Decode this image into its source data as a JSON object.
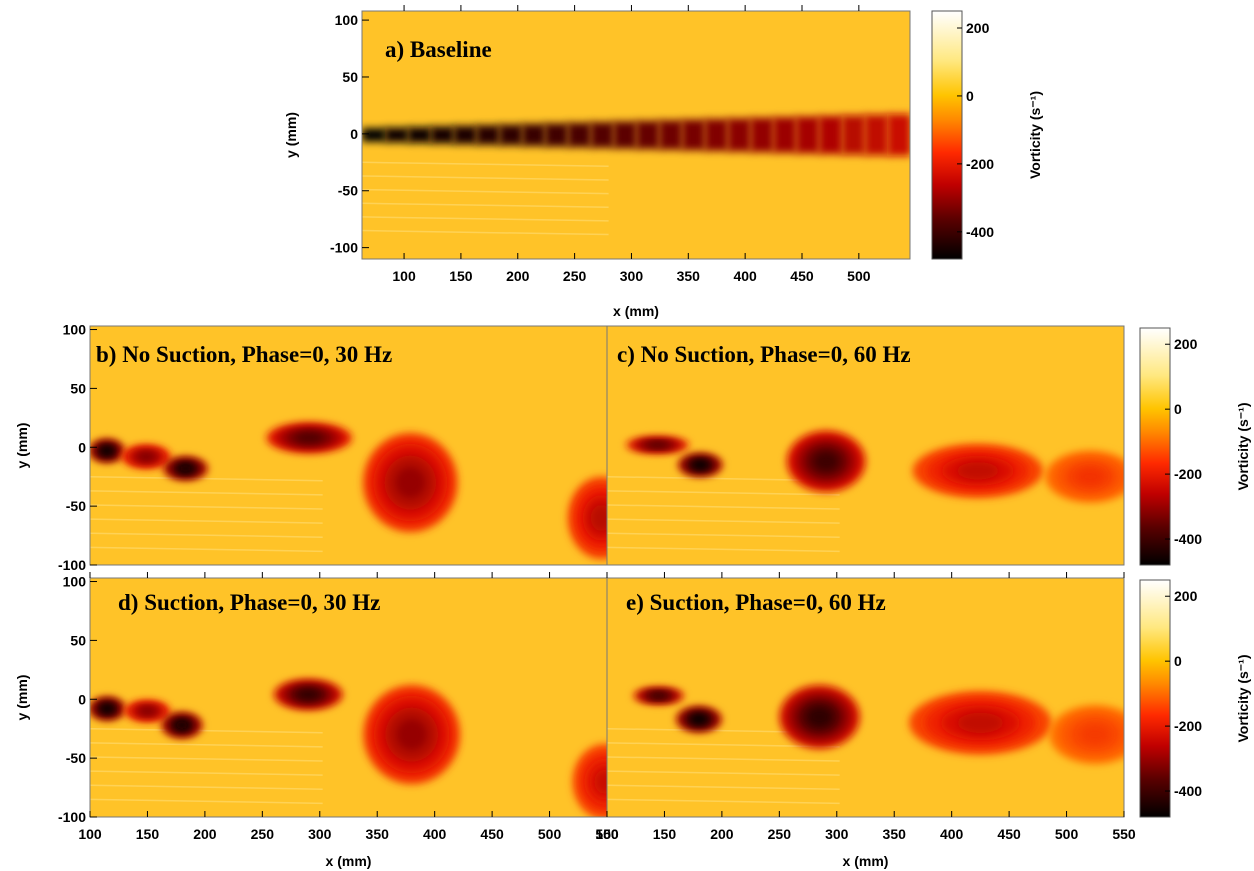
{
  "chart_data": [
    {
      "type": "heatmap",
      "title": "a) Baseline",
      "xlabel": "x (mm)",
      "ylabel": "y (mm)",
      "xlim": [
        63,
        545
      ],
      "ylim": [
        -110,
        108
      ],
      "xticks": [
        100,
        150,
        200,
        250,
        300,
        350,
        400,
        450,
        500
      ],
      "yticks": [
        100,
        50,
        0,
        -50,
        -100
      ],
      "colorbar": {
        "label": "Vorticity (s⁻¹)",
        "range": [
          -480,
          250
        ],
        "ticks": [
          200,
          0,
          -200,
          -400
        ]
      },
      "background_vorticity": 0,
      "features": [
        {
          "kind": "shear-layer",
          "x_start": 63,
          "x_end": 545,
          "y_center": -1,
          "half_width_start": 6,
          "half_width_end": 19,
          "vorticity_start": -480,
          "vorticity_end": -230
        }
      ]
    },
    {
      "type": "heatmap",
      "title": "b) No Suction, Phase=0, 30 Hz",
      "xlabel": "",
      "ylabel": "y (mm)",
      "xlim": [
        90,
        550
      ],
      "ylim": [
        -100,
        103
      ],
      "yticks": [
        100,
        50,
        0,
        -50,
        -100
      ],
      "background_vorticity": 0,
      "features": [
        {
          "kind": "vortex",
          "x": 105,
          "y": -3,
          "rx": 16,
          "ry": 10,
          "vorticity": -480
        },
        {
          "kind": "vortex",
          "x": 140,
          "y": -8,
          "rx": 22,
          "ry": 10,
          "vorticity": -330
        },
        {
          "kind": "vortex",
          "x": 175,
          "y": -18,
          "rx": 20,
          "ry": 10,
          "vorticity": -470
        },
        {
          "kind": "vortex",
          "x": 285,
          "y": 8,
          "rx": 38,
          "ry": 13,
          "vorticity": -380
        },
        {
          "kind": "vortex",
          "x": 375,
          "y": -30,
          "rx": 42,
          "ry": 42,
          "vorticity": -300
        },
        {
          "kind": "vortex",
          "x": 545,
          "y": -60,
          "rx": 30,
          "ry": 35,
          "vorticity": -260
        }
      ]
    },
    {
      "type": "heatmap",
      "title": "c) No Suction, Phase=0, 60 Hz",
      "xlabel": "",
      "ylabel": "",
      "xlim": [
        90,
        550
      ],
      "ylim": [
        -100,
        103
      ],
      "colorbar": {
        "label": "Vorticity (s⁻¹)",
        "range": [
          -480,
          250
        ],
        "ticks": [
          200,
          0,
          -200,
          -400
        ]
      },
      "background_vorticity": 0,
      "features": [
        {
          "kind": "vortex",
          "x": 135,
          "y": 2,
          "rx": 28,
          "ry": 7,
          "vorticity": -380
        },
        {
          "kind": "vortex",
          "x": 173,
          "y": -15,
          "rx": 20,
          "ry": 10,
          "vorticity": -480
        },
        {
          "kind": "vortex",
          "x": 285,
          "y": -12,
          "rx": 35,
          "ry": 26,
          "vorticity": -400
        },
        {
          "kind": "vortex",
          "x": 420,
          "y": -20,
          "rx": 58,
          "ry": 23,
          "vorticity": -250
        },
        {
          "kind": "vortex",
          "x": 520,
          "y": -25,
          "rx": 40,
          "ry": 22,
          "vorticity": -160
        }
      ]
    },
    {
      "type": "heatmap",
      "title": "d) Suction, Phase=0, 30 Hz",
      "xlabel": "x (mm)",
      "ylabel": "y (mm)",
      "xlim": [
        100,
        550
      ],
      "ylim": [
        -100,
        103
      ],
      "xticks": [
        100,
        150,
        200,
        250,
        300,
        350,
        400,
        450,
        500,
        550
      ],
      "yticks": [
        100,
        50,
        0,
        -50,
        -100
      ],
      "background_vorticity": 0,
      "features": [
        {
          "kind": "vortex",
          "x": 115,
          "y": -8,
          "rx": 16,
          "ry": 10,
          "vorticity": -480
        },
        {
          "kind": "vortex",
          "x": 150,
          "y": -10,
          "rx": 20,
          "ry": 9,
          "vorticity": -330
        },
        {
          "kind": "vortex",
          "x": 180,
          "y": -22,
          "rx": 18,
          "ry": 11,
          "vorticity": -470
        },
        {
          "kind": "vortex",
          "x": 290,
          "y": 4,
          "rx": 30,
          "ry": 13,
          "vorticity": -420
        },
        {
          "kind": "vortex",
          "x": 380,
          "y": -30,
          "rx": 42,
          "ry": 42,
          "vorticity": -300
        },
        {
          "kind": "vortex",
          "x": 548,
          "y": -70,
          "rx": 28,
          "ry": 32,
          "vorticity": -240
        }
      ]
    },
    {
      "type": "heatmap",
      "title": "e) Suction, Phase=0, 60 Hz",
      "xlabel": "x (mm)",
      "ylabel": "",
      "xlim": [
        100,
        550
      ],
      "ylim": [
        -100,
        103
      ],
      "xticks": [
        100,
        150,
        200,
        250,
        300,
        350,
        400,
        450,
        500,
        550
      ],
      "colorbar": {
        "label": "Vorticity (s⁻¹)",
        "range": [
          -480,
          250
        ],
        "ticks": [
          200,
          0,
          -200,
          -400
        ]
      },
      "background_vorticity": 0,
      "features": [
        {
          "kind": "vortex",
          "x": 145,
          "y": 3,
          "rx": 22,
          "ry": 7,
          "vorticity": -420
        },
        {
          "kind": "vortex",
          "x": 180,
          "y": -17,
          "rx": 20,
          "ry": 11,
          "vorticity": -480
        },
        {
          "kind": "vortex",
          "x": 285,
          "y": -15,
          "rx": 35,
          "ry": 27,
          "vorticity": -420
        },
        {
          "kind": "vortex",
          "x": 425,
          "y": -20,
          "rx": 62,
          "ry": 27,
          "vorticity": -250
        },
        {
          "kind": "vortex",
          "x": 525,
          "y": -30,
          "rx": 40,
          "ry": 25,
          "vorticity": -150
        }
      ]
    }
  ]
}
